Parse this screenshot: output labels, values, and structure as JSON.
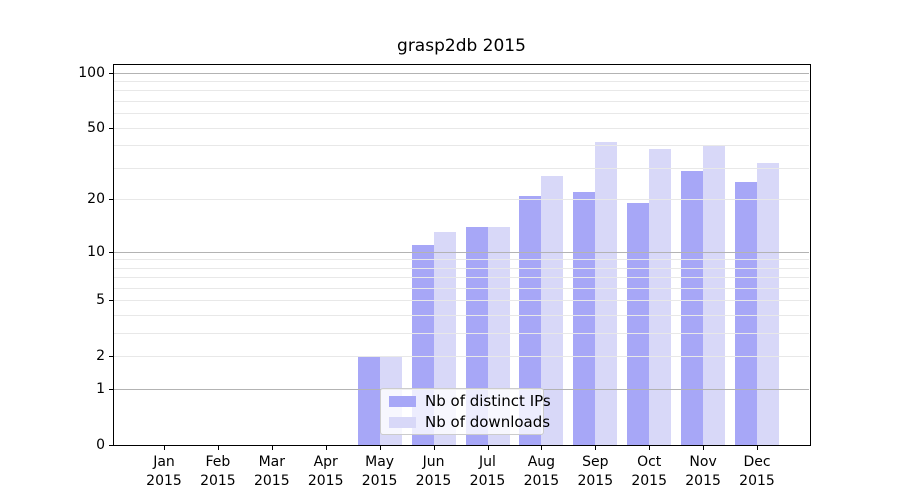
{
  "chart_data": {
    "type": "bar",
    "title": "grasp2db 2015",
    "categories": [
      "Jan",
      "Feb",
      "Mar",
      "Apr",
      "May",
      "Jun",
      "Jul",
      "Aug",
      "Sep",
      "Oct",
      "Nov",
      "Dec"
    ],
    "category_year": "2015",
    "series": [
      {
        "name": "Nb of distinct IPs",
        "color": "#a7a7f7",
        "values": [
          0,
          0,
          0,
          0,
          2,
          11,
          14,
          21,
          22,
          19,
          29,
          25
        ]
      },
      {
        "name": "Nb of downloads",
        "color": "#d8d8f8",
        "values": [
          0,
          0,
          0,
          0,
          2,
          13,
          14,
          27,
          42,
          38,
          40,
          32
        ]
      }
    ],
    "xlabel": "",
    "ylabel": "",
    "yscale": "log1p",
    "ylim": [
      0,
      111.4
    ],
    "y_tick_values": [
      0,
      1,
      2,
      5,
      10,
      20,
      50,
      100
    ],
    "grid": {
      "major": [
        1,
        10,
        100
      ],
      "minor": [
        2,
        3,
        4,
        5,
        6,
        7,
        8,
        9,
        20,
        30,
        40,
        50,
        60,
        70,
        80,
        90
      ]
    },
    "legend_position": "lower center",
    "grid_on": true
  }
}
